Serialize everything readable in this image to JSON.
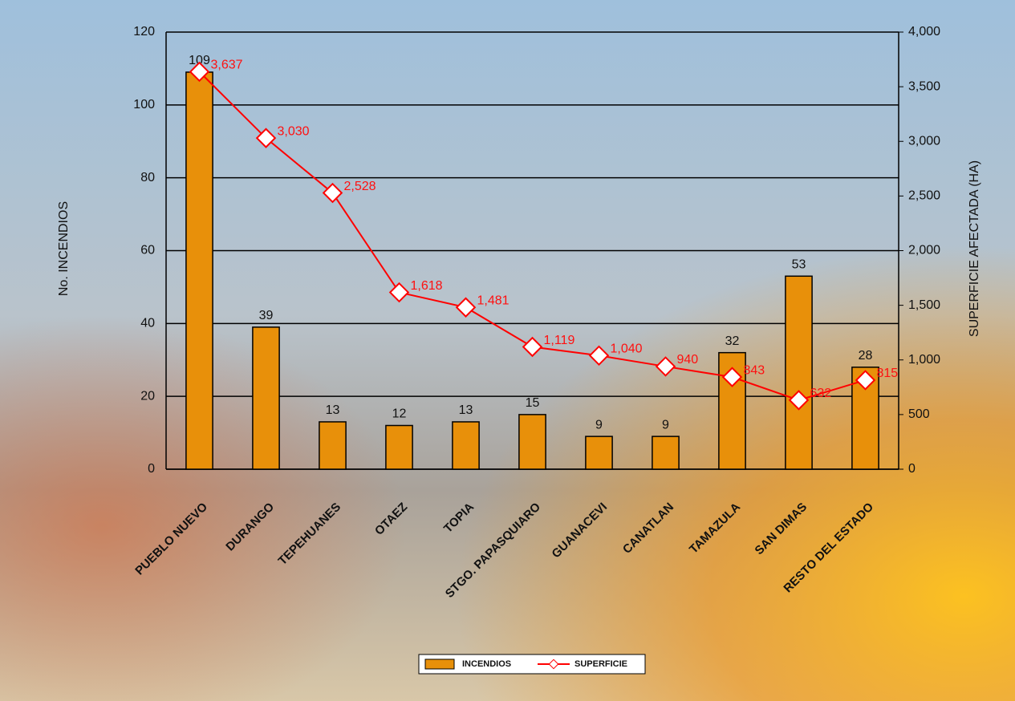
{
  "chart_data": {
    "type": "bar",
    "categories": [
      "PUEBLO NUEVO",
      "DURANGO",
      "TEPEHUANES",
      "OTAEZ",
      "TOPIA",
      "STGO. PAPASQUIARO",
      "GUANACEVI",
      "CANATLAN",
      "TAMAZULA",
      "SAN DIMAS",
      "RESTO DEL ESTADO"
    ],
    "series": [
      {
        "name": "INCENDIOS",
        "color": "#e8900a",
        "values": [
          109,
          39,
          13,
          12,
          13,
          15,
          9,
          9,
          32,
          53,
          28
        ]
      },
      {
        "name": "SUPERFICIE",
        "color": "#ff0000",
        "axis": "y2",
        "type": "line",
        "values": [
          3637,
          3030,
          2528,
          1618,
          1481,
          1119,
          1040,
          940,
          843,
          632,
          815
        ],
        "value_labels": [
          "3,637",
          "3,030",
          "2,528",
          "1,618",
          "1,481",
          "1,119",
          "1,040",
          "940",
          "843",
          "632",
          "815"
        ]
      }
    ],
    "ylabel": "No. INCENDIOS",
    "y2label": "SUPERFICIE AFECTADA (HA)",
    "ylim": [
      0,
      120
    ],
    "yticks": [
      0,
      20,
      40,
      60,
      80,
      100,
      120
    ],
    "y2lim": [
      0,
      4000
    ],
    "y2ticks": [
      0,
      500,
      {
        "value": 1000,
        "label": "1,000"
      },
      {
        "value": 1500,
        "label": "1,500"
      },
      {
        "value": 2000,
        "label": "2,000"
      },
      {
        "value": 2500,
        "label": "2,500"
      },
      {
        "value": 3000,
        "label": "3,000"
      },
      {
        "value": 3500,
        "label": "3,500"
      },
      {
        "value": 4000,
        "label": "4,000"
      }
    ],
    "grid": true,
    "legend": "bottom"
  }
}
